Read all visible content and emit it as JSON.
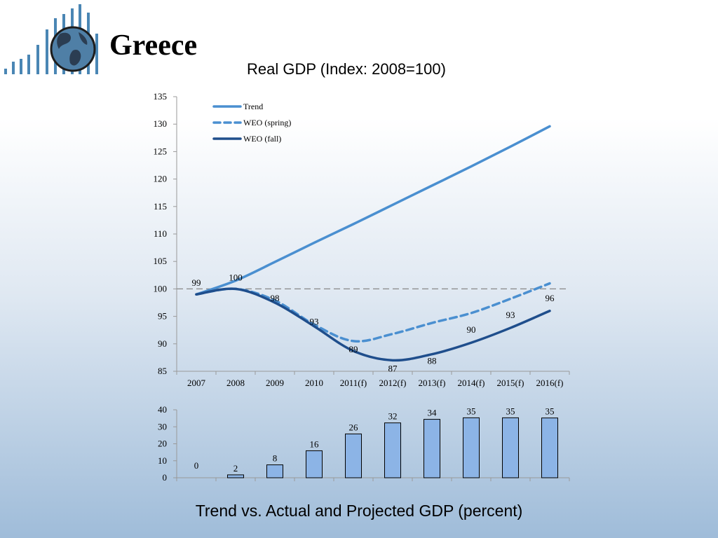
{
  "slide": {
    "title": "Greece",
    "footer": "Trend vs. Actual and Projected GDP (percent)"
  },
  "colors": {
    "trend": "#4a8fd0",
    "weo_spring": "#4a8fd0",
    "weo_fall": "#1f4e8c",
    "bar_fill": "#8cb4e6",
    "reference_line": "#888888",
    "logo_bars": "#4a86b4"
  },
  "logo": {
    "icon": "globe-with-bars-icon"
  },
  "chart_data": [
    {
      "type": "line",
      "title": "Real GDP (Index: 2008=100)",
      "categories": [
        "2007",
        "2008",
        "2009",
        "2010",
        "2011(f)",
        "2012(f)",
        "2013(f)",
        "2014(f)",
        "2015(f)",
        "2016(f)"
      ],
      "ylim": [
        85,
        135
      ],
      "yticks": [
        85,
        90,
        95,
        100,
        105,
        110,
        115,
        120,
        125,
        130,
        135
      ],
      "reference_line": 100,
      "legend_position": "top-left",
      "series": [
        {
          "name": "Trend",
          "style": "solid",
          "values": [
            99,
            101.5,
            104.9,
            108.4,
            111.8,
            115.3,
            118.8,
            122.3,
            125.9,
            129.6
          ]
        },
        {
          "name": "WEO (spring)",
          "style": "dashed",
          "values": [
            99,
            100,
            97.9,
            93.5,
            90.5,
            91.8,
            93.8,
            95.6,
            98.2,
            101
          ]
        },
        {
          "name": "WEO (fall)",
          "style": "solid",
          "values": [
            99,
            100,
            97.5,
            93.2,
            88.7,
            87,
            88.1,
            90.2,
            92.9,
            96
          ]
        }
      ],
      "data_labels": [
        "99",
        "100",
        "98",
        "93",
        "89",
        "87",
        "88",
        "90",
        "93",
        "96"
      ]
    },
    {
      "type": "bar",
      "categories": [
        "2007",
        "2008",
        "2009",
        "2010",
        "2011(f)",
        "2012(f)",
        "2013(f)",
        "2014(f)",
        "2015(f)",
        "2016(f)"
      ],
      "values": [
        0,
        2,
        8,
        16,
        26,
        32,
        34,
        35,
        35,
        35
      ],
      "bar_values": [
        0,
        1.7,
        7.6,
        15.9,
        25.8,
        32.3,
        34.4,
        35.3,
        35.3,
        35.2
      ],
      "ylim": [
        0,
        40
      ],
      "yticks": [
        0,
        10,
        20,
        30,
        40
      ]
    }
  ]
}
